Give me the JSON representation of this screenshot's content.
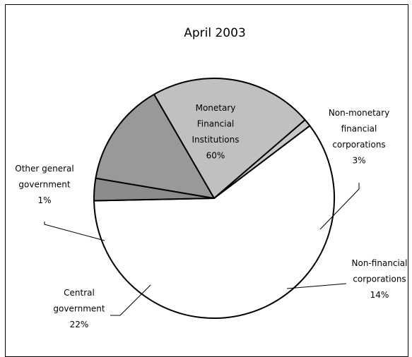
{
  "chart_data": {
    "type": "pie",
    "title": "April 2003",
    "categories": [
      "Monetary Financial Institutions",
      "Non-monetary financial corporations",
      "Non-financial corporations",
      "Central government",
      "Other general government"
    ],
    "values": [
      60,
      3,
      14,
      22,
      1
    ],
    "value_labels": [
      "60%",
      "3%",
      "14%",
      "22%",
      "1%"
    ],
    "label_lines": [
      [
        "Monetary",
        "Financial",
        "Institutions",
        "60%"
      ],
      [
        "Non-monetary",
        "financial",
        "corporations",
        "3%"
      ],
      [
        "Non-financial",
        "corporations",
        "14%"
      ],
      [
        "Central",
        "government",
        "22%"
      ],
      [
        "Other general",
        "government",
        "1%"
      ]
    ],
    "colors": [
      "#ffffff",
      "#8c8c8c",
      "#999999",
      "#c0c0c0",
      "#c8c8c8"
    ],
    "legend": "none"
  }
}
